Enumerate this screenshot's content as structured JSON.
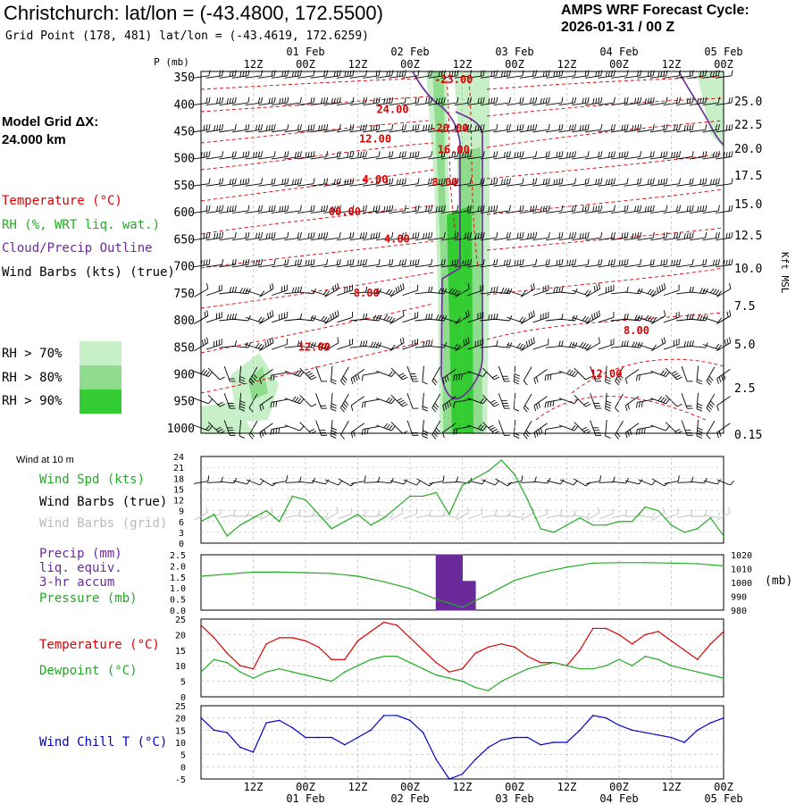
{
  "header": {
    "title": "Christchurch:  lat/lon = (-43.4800, 172.5500)",
    "subtitle": "Grid Point (178, 481) lat/lon = (-43.4619, 172.6259)",
    "cycle_line1": "AMPS WRF Forecast Cycle:",
    "cycle_line2": "2026-01-31 / 00  Z"
  },
  "sidebar": {
    "model_grid_label": "Model Grid ΔX:",
    "model_grid_value": " 24.000 km",
    "temperature": "Temperature (°C)",
    "rh": "RH (%, WRT liq. wat.)",
    "cloud": "Cloud/Precip Outline",
    "wind_barbs": "Wind Barbs (kts) (true)",
    "rh70": "RH > 70%",
    "rh80": "RH > 80%",
    "rh90": "RH > 90%",
    "wind10m": "Wind at 10 m",
    "wind_spd": "Wind Spd (kts)",
    "wind_barbs_true": "Wind Barbs (true)",
    "wind_barbs_grid": "Wind Barbs (grid)",
    "precip1": "Precip (mm)",
    "precip2": "liq. equiv.",
    "precip3": "3-hr accum",
    "pressure": "Pressure (mb)",
    "temp2": "Temperature (°C)",
    "dewpoint": "Dewpoint (°C)",
    "windchill": "Wind Chill T (°C)",
    "mb_unit": "(mb)",
    "kft_msl": "Kft MSL"
  },
  "colors": {
    "temperature": "#dd0000",
    "rh70": "#c8f0c8",
    "rh80": "#8fdc8f",
    "rh90": "#33cc33",
    "cloud": "#6a2a9a",
    "wind_spd": "#22aa22",
    "grid_barbs": "#bbbbbb",
    "precip": "#6a2a9a",
    "dewpoint": "#22aa22",
    "windchill": "#0000cc"
  },
  "chart_data": {
    "type": "line",
    "time_axis": {
      "top_ticks": [
        "12Z",
        "00Z",
        "12Z",
        "00Z",
        "12Z",
        "00Z",
        "12Z",
        "00Z",
        "12Z",
        "00Z"
      ],
      "top_dates": [
        "01 Feb",
        "02 Feb",
        "03 Feb",
        "04 Feb",
        "05 Feb"
      ],
      "bottom_ticks": [
        "12Z",
        "00Z",
        "12Z",
        "00Z",
        "12Z",
        "00Z",
        "12Z",
        "00Z",
        "12Z",
        "00Z"
      ],
      "bottom_dates": [
        "01 Feb",
        "02 Feb",
        "03 Feb",
        "04 Feb",
        "05 Feb"
      ],
      "hours_range": [
        0,
        120
      ]
    },
    "cross_section": {
      "ylabel": "P (mb)",
      "pressure_levels": [
        "350",
        "400",
        "450",
        "500",
        "550",
        "600",
        "650",
        "700",
        "750",
        "800",
        "850",
        "900",
        "950",
        "1000"
      ],
      "height_labels": [
        "25.0",
        "22.5",
        "20.0",
        "17.5",
        "15.0",
        "12.5",
        "10.0",
        "7.5",
        "5.0",
        "2.5",
        "0.15"
      ],
      "temp_labels": [
        {
          "text": "-23.00",
          "hour": 58,
          "p": 355
        },
        {
          "text": "24.00",
          "hour": 44,
          "p": 410
        },
        {
          "text": "-20.00",
          "hour": 57,
          "p": 445
        },
        {
          "text": "12.00",
          "hour": 40,
          "p": 465
        },
        {
          "text": "16.00",
          "hour": 58,
          "p": 485
        },
        {
          "text": "4.00",
          "hour": 40,
          "p": 540
        },
        {
          "text": "8.00",
          "hour": 56,
          "p": 545
        },
        {
          "text": "00.00",
          "hour": 33,
          "p": 600
        },
        {
          "text": "4.00",
          "hour": 45,
          "p": 650
        },
        {
          "text": "8.00",
          "hour": 38,
          "p": 750
        },
        {
          "text": "12.00",
          "hour": 26,
          "p": 850
        },
        {
          "text": "8.00",
          "hour": 100,
          "p": 820
        },
        {
          "text": "12.00",
          "hour": 93,
          "p": 900
        }
      ]
    },
    "wind_speed": {
      "ylabel": "Wind Spd (kts)",
      "ylim": [
        0,
        24
      ],
      "ticks": [
        "0",
        "3",
        "6",
        "9",
        "12",
        "15",
        "18",
        "21",
        "24"
      ],
      "hours": [
        0,
        3,
        6,
        9,
        12,
        15,
        18,
        21,
        24,
        27,
        30,
        33,
        36,
        39,
        42,
        45,
        48,
        51,
        54,
        57,
        60,
        63,
        66,
        69,
        72,
        75,
        78,
        81,
        84,
        87,
        90,
        93,
        96,
        99,
        102,
        105,
        108,
        111,
        114,
        117,
        120
      ],
      "values": [
        6,
        8,
        2,
        5,
        7,
        9,
        6,
        13,
        12,
        8,
        4,
        6,
        8,
        5,
        7,
        10,
        13,
        13,
        14,
        8,
        16,
        18,
        20,
        23,
        19,
        12,
        4,
        3,
        5,
        7,
        5,
        5,
        6,
        6,
        10,
        9,
        5,
        3,
        4,
        7,
        2
      ]
    },
    "pressure": {
      "ylim": [
        980,
        1020
      ],
      "left_ticks": [
        "0.0",
        "0.5",
        "1.0",
        "1.5",
        "2.0",
        "2.5"
      ],
      "right_ticks": [
        "980",
        "990",
        "1000",
        "1010",
        "1020"
      ],
      "hours": [
        0,
        6,
        12,
        18,
        24,
        30,
        36,
        42,
        48,
        54,
        60,
        66,
        72,
        78,
        84,
        90,
        96,
        102,
        108,
        114,
        120
      ],
      "values": [
        1004.5,
        1006,
        1007.5,
        1007.5,
        1007,
        1006.5,
        1004.5,
        1000.5,
        995.5,
        988,
        982,
        991.5,
        1001.5,
        1007,
        1011,
        1014,
        1014.3,
        1014.3,
        1014,
        1013.5,
        1012
      ]
    },
    "precip": {
      "ylim": [
        0,
        2.5
      ],
      "bars": [
        {
          "start": 54,
          "end": 57,
          "value": 2.5
        },
        {
          "start": 57,
          "end": 60,
          "value": 2.5
        },
        {
          "start": 60,
          "end": 63,
          "value": 1.3
        }
      ]
    },
    "temperature": {
      "ylim": [
        0,
        25
      ],
      "ticks": [
        "0",
        "5",
        "10",
        "15",
        "20",
        "25"
      ],
      "hours": [
        0,
        3,
        6,
        9,
        12,
        15,
        18,
        21,
        24,
        27,
        30,
        33,
        36,
        39,
        42,
        45,
        48,
        51,
        54,
        57,
        60,
        63,
        66,
        69,
        72,
        75,
        78,
        81,
        84,
        87,
        90,
        93,
        96,
        99,
        102,
        105,
        108,
        111,
        114,
        117,
        120
      ],
      "values": [
        23,
        19,
        14,
        10,
        9,
        17,
        19,
        19,
        18,
        16,
        12,
        12,
        18,
        21,
        24,
        23,
        19,
        15,
        11,
        8,
        9,
        14,
        16,
        17,
        16,
        13,
        11,
        11,
        10,
        15,
        22,
        22,
        20,
        17,
        20,
        21,
        18,
        15,
        12,
        17,
        21
      ]
    },
    "dewpoint": {
      "hours": [
        0,
        3,
        6,
        9,
        12,
        15,
        18,
        21,
        24,
        27,
        30,
        33,
        36,
        39,
        42,
        45,
        48,
        51,
        54,
        57,
        60,
        63,
        66,
        69,
        72,
        75,
        78,
        81,
        84,
        87,
        90,
        93,
        96,
        99,
        102,
        105,
        108,
        111,
        114,
        117,
        120
      ],
      "values": [
        8,
        12,
        11,
        8,
        6,
        8,
        9,
        8,
        7,
        6,
        5,
        8,
        10,
        12,
        13,
        13,
        11,
        9,
        7,
        6,
        5,
        3,
        2,
        5,
        7,
        9,
        10,
        11,
        10,
        9,
        9,
        10,
        12,
        10,
        13,
        12,
        10,
        9,
        8,
        7,
        6
      ]
    },
    "wind_chill": {
      "ylim": [
        -5,
        25
      ],
      "ticks": [
        "-5",
        "0",
        "5",
        "10",
        "15",
        "20",
        "25"
      ],
      "hours": [
        0,
        3,
        6,
        9,
        12,
        15,
        18,
        21,
        24,
        27,
        30,
        33,
        36,
        39,
        42,
        45,
        48,
        51,
        54,
        57,
        60,
        63,
        66,
        69,
        72,
        75,
        78,
        81,
        84,
        87,
        90,
        93,
        96,
        99,
        102,
        105,
        108,
        111,
        114,
        117,
        120
      ],
      "values": [
        20,
        15,
        14,
        8,
        6,
        18,
        19,
        16,
        12,
        12,
        12,
        9,
        12,
        15,
        21,
        21,
        19,
        14,
        3,
        -5,
        -3,
        3,
        8,
        11,
        12,
        12,
        9,
        10,
        10,
        15,
        21,
        20,
        17,
        15,
        14,
        13,
        12,
        10,
        15,
        18,
        20
      ]
    }
  }
}
